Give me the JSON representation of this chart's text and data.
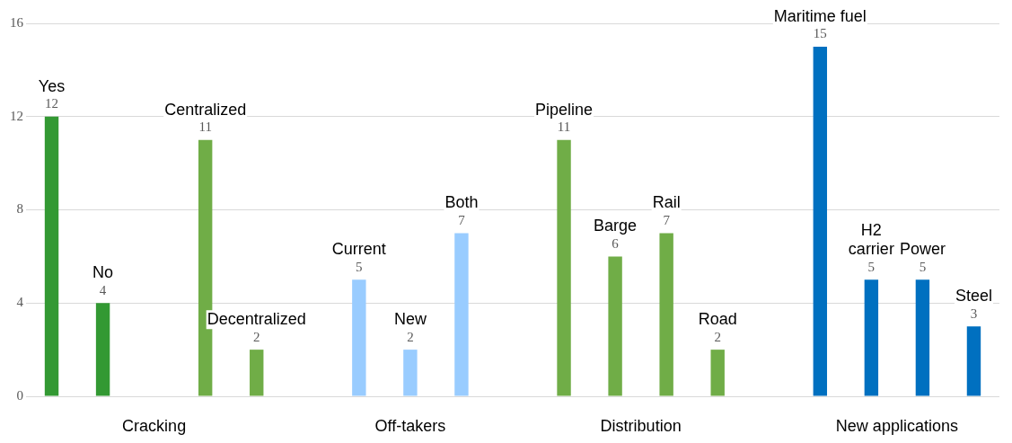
{
  "chart_data": {
    "type": "bar",
    "categories": [
      "Yes",
      "No",
      null,
      "Centralized",
      "Decentralized",
      null,
      "Current",
      "New",
      "Both",
      null,
      "Pipeline",
      "Barge",
      "Rail",
      "Road",
      null,
      "Maritime fuel",
      "H2 carrier",
      "Power",
      "Steel"
    ],
    "series": [
      {
        "name": "Cracking",
        "color": "#339933",
        "colors": [
          "#339933",
          "#339933",
          null,
          "#70ad47",
          "#70ad47",
          null,
          null,
          null,
          null,
          null,
          null,
          null,
          null,
          null,
          null,
          null,
          null,
          null,
          null
        ],
        "values": [
          12,
          4,
          null,
          11,
          2,
          null,
          null,
          null,
          null,
          null,
          null,
          null,
          null,
          null,
          null,
          null,
          null,
          null,
          null
        ]
      },
      {
        "name": "Off-takers",
        "color": "#99ccff",
        "values": [
          null,
          null,
          null,
          null,
          null,
          null,
          5,
          2,
          7,
          null,
          null,
          null,
          null,
          null,
          null,
          null,
          null,
          null,
          null
        ]
      },
      {
        "name": "Distribution",
        "color": "#70ad47",
        "values": [
          null,
          null,
          null,
          null,
          null,
          null,
          null,
          null,
          null,
          null,
          11,
          6,
          7,
          2,
          null,
          null,
          null,
          null,
          null
        ]
      },
      {
        "name": "New applications",
        "color": "#0070c0",
        "values": [
          null,
          null,
          null,
          null,
          null,
          null,
          null,
          null,
          null,
          null,
          null,
          null,
          null,
          null,
          null,
          15,
          5,
          5,
          3
        ]
      }
    ],
    "ylim": [
      0,
      16
    ],
    "yticks": [
      0,
      4,
      8,
      12,
      16
    ],
    "grid": "y",
    "legend": false,
    "data_labels": true
  }
}
